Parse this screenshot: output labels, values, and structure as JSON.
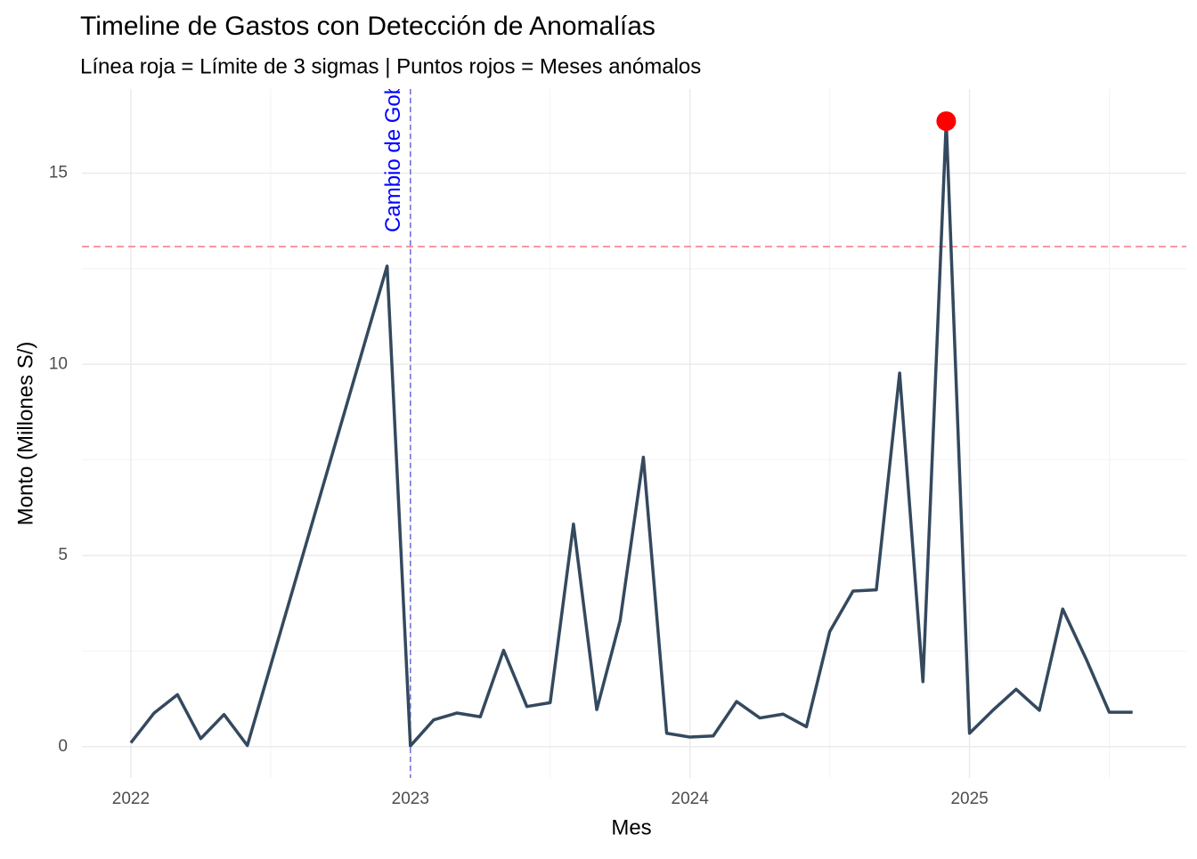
{
  "chart_data": {
    "type": "line",
    "title": "Timeline de Gastos con Detección de Anomalías",
    "subtitle": "Línea roja = Límite de 3 sigmas | Puntos rojos = Meses anómalos",
    "xlabel": "Mes",
    "ylabel": "Monto (Millones S/)",
    "x": [
      "2022-01",
      "2022-02",
      "2022-03",
      "2022-04",
      "2022-05",
      "2022-06",
      "2022-12",
      "2023-01",
      "2023-02",
      "2023-03",
      "2023-04",
      "2023-05",
      "2023-06",
      "2023-07",
      "2023-08",
      "2023-09",
      "2023-10",
      "2023-11",
      "2023-12",
      "2024-01",
      "2024-02",
      "2024-03",
      "2024-04",
      "2024-05",
      "2024-06",
      "2024-07",
      "2024-08",
      "2024-09",
      "2024-10",
      "2024-11",
      "2024-12",
      "2025-01",
      "2025-02",
      "2025-03",
      "2025-04",
      "2025-05",
      "2025-06",
      "2025-07",
      "2025-08"
    ],
    "series": [
      {
        "color": "#34495e",
        "values": [
          0.1,
          0.88,
          1.36,
          0.21,
          0.84,
          0.03,
          12.57,
          0.02,
          0.7,
          0.88,
          0.78,
          2.52,
          1.05,
          1.15,
          5.82,
          0.97,
          3.29,
          7.57,
          0.35,
          0.25,
          0.28,
          1.18,
          0.75,
          0.85,
          0.52,
          3.01,
          4.07,
          4.1,
          9.77,
          1.7,
          16.36,
          0.35,
          0.95,
          1.5,
          0.95,
          3.6,
          2.3,
          0.9,
          0.9
        ]
      }
    ],
    "anomalies": {
      "color": "#ff0000",
      "x": [
        "2024-12"
      ],
      "values": [
        16.36
      ]
    },
    "threshold": {
      "y": 13.08,
      "color": "#f8767d"
    },
    "event": {
      "x": "2023-01",
      "label": "Cambio de Gobierno",
      "color": "#0000ff"
    },
    "xlim": [
      "2021-11",
      "2025-10"
    ],
    "xticks": [
      "2022",
      "2023",
      "2024",
      "2025"
    ],
    "ylim": [
      -0.82,
      17.2
    ],
    "yticks": [
      0,
      5,
      10,
      15
    ],
    "grid": true
  }
}
